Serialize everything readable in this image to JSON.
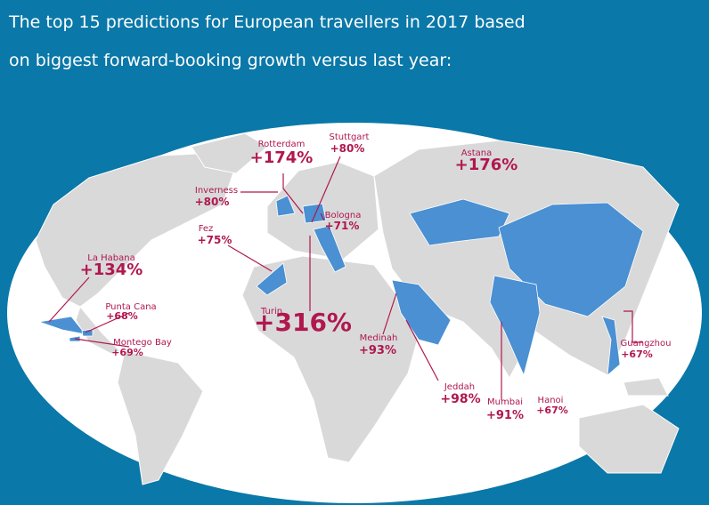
{
  "title": "The top 15 predictions for European travellers in 2017 based on biggest forward-booking growth versus last year:",
  "labels": [
    {
      "name": "Rotterdam",
      "growth": "+174%"
    },
    {
      "name": "Stuttgart",
      "growth": "+80%"
    },
    {
      "name": "Astana",
      "growth": "+176%"
    },
    {
      "name": "Inverness",
      "growth": "+80%"
    },
    {
      "name": "Bologna",
      "growth": "+71%"
    },
    {
      "name": "Fez",
      "growth": "+75%"
    },
    {
      "name": "La Habana",
      "growth": "+134%"
    },
    {
      "name": "Punta Cana",
      "growth": "+68%"
    },
    {
      "name": "Montego Bay",
      "growth": "+69%"
    },
    {
      "name": "Turin",
      "growth": "+316%"
    },
    {
      "name": "Medinah",
      "growth": "+93%"
    },
    {
      "name": "Jeddah",
      "growth": "+98%"
    },
    {
      "name": "Mumbai",
      "growth": "+91%"
    },
    {
      "name": "Hanoi",
      "growth": "+67%"
    },
    {
      "name": "Guangzhou",
      "growth": "+67%"
    }
  ]
}
